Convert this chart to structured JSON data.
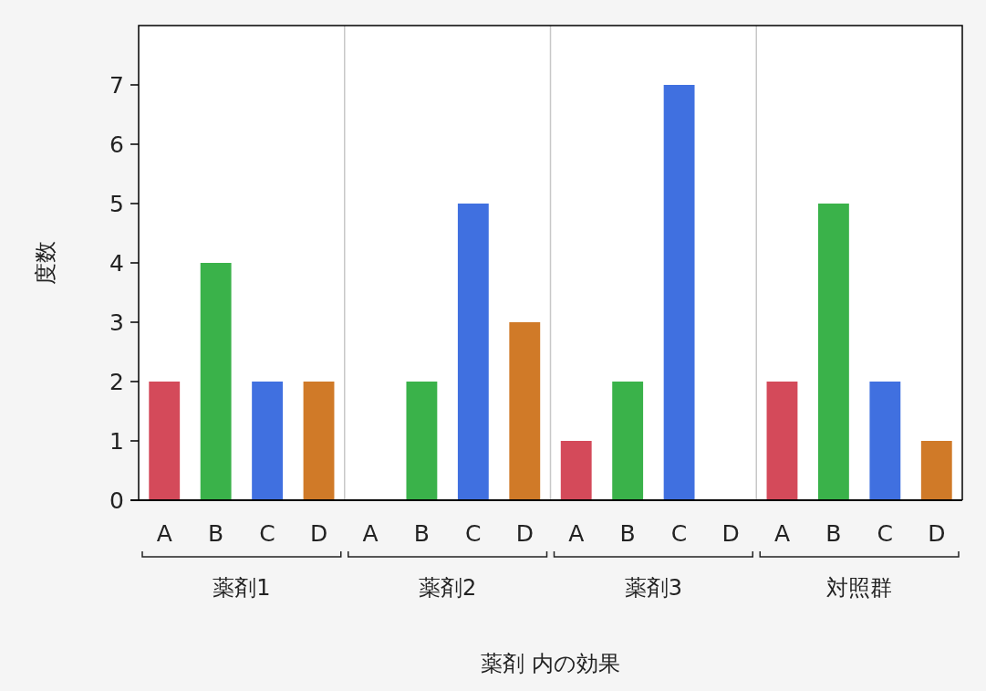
{
  "chart_data": [
    {
      "type": "bar",
      "categories": [
        "A",
        "B",
        "C",
        "D"
      ],
      "values": [
        2,
        4,
        2,
        2
      ],
      "colors": [
        "#d44a5a",
        "#3ab24a",
        "#4070e0",
        "#d07a28"
      ],
      "xlabel": "薬剤1",
      "ylabel": "度数",
      "ylim": [
        0,
        8
      ],
      "yticks": [
        0,
        1,
        2,
        3,
        4,
        5,
        6,
        7
      ],
      "annotations": [
        "薬剤 内の効果"
      ]
    },
    {
      "type": "bar",
      "categories": [
        "A",
        "B",
        "C",
        "D"
      ],
      "values": [
        0,
        2,
        5,
        3
      ],
      "colors": [
        "#d44a5a",
        "#3ab24a",
        "#4070e0",
        "#d07a28"
      ],
      "xlabel": "薬剤2",
      "ylim": [
        0,
        8
      ],
      "tick_labels": "x"
    },
    {
      "type": "bar",
      "categories": [
        "A",
        "B",
        "C",
        "D"
      ],
      "values": [
        1,
        2,
        7,
        0
      ],
      "colors": [
        "#d44a5a",
        "#3ab24a",
        "#4070e0",
        "#d07a28"
      ],
      "xlabel": "薬剤3",
      "ylim": [
        0,
        8
      ],
      "tick_labels": "x"
    },
    {
      "type": "bar",
      "categories": [
        "A",
        "B",
        "C",
        "D"
      ],
      "values": [
        2,
        5,
        2,
        1
      ],
      "colors": [
        "#d44a5a",
        "#3ab24a",
        "#4070e0",
        "#d07a28"
      ],
      "xlabel": "対照群",
      "ylim": [
        0,
        8
      ],
      "tick_labels": "x"
    }
  ]
}
